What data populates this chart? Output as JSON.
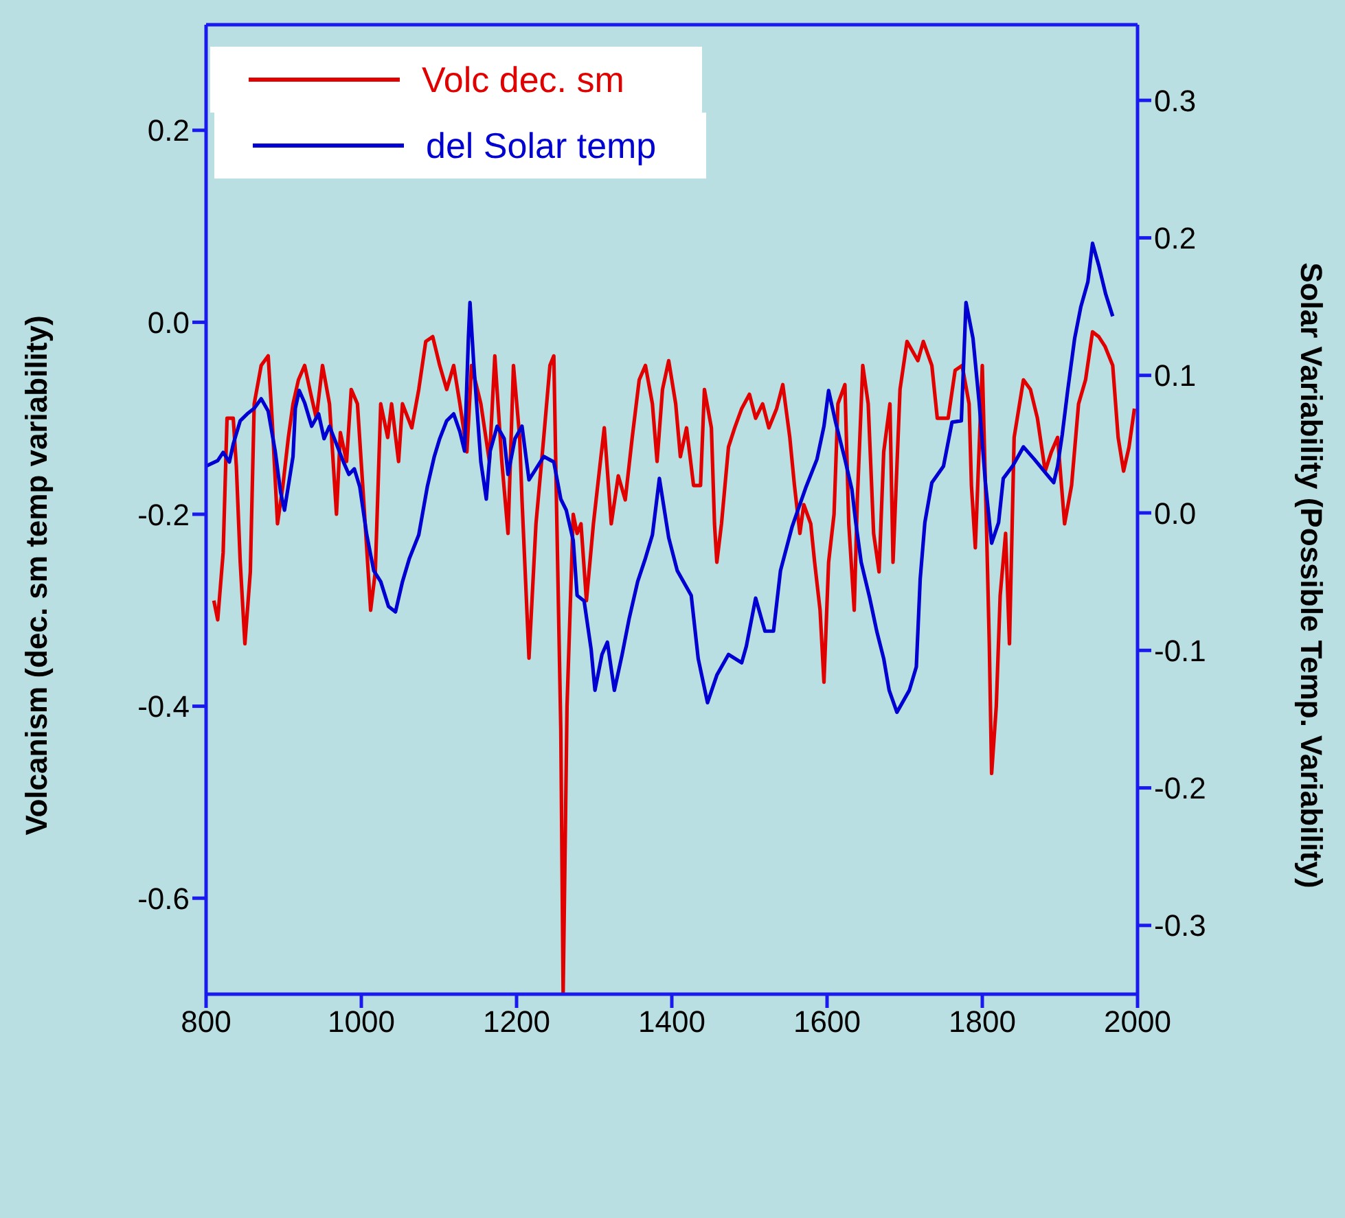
{
  "chart_data": {
    "type": "line",
    "xlabel": null,
    "ylabel": "Volcanism  (dec. sm temp variability)",
    "y2label": "Solar Variability (Possible Temp. Variability)",
    "xlim": [
      800,
      2000
    ],
    "xticks": [
      800,
      1000,
      1200,
      1400,
      1600,
      1800,
      2000
    ],
    "ylim": [
      -0.7,
      0.31
    ],
    "yticks": [
      -0.6,
      -0.4,
      -0.2,
      {
        "value": 0,
        "label": "0.0"
      },
      0.2
    ],
    "y2lim": [
      -0.35,
      0.355
    ],
    "y2ticks": [
      -0.3,
      -0.2,
      -0.1,
      {
        "value": 0,
        "label": "0.0"
      },
      0.1,
      0.2,
      0.3
    ],
    "legend": "top left",
    "marker": "none",
    "line_style": "solid",
    "series": [
      {
        "name": "Volc dec. sm",
        "color": "#e00000",
        "x": [
          810,
          815,
          822,
          827,
          835,
          839,
          844,
          850,
          857,
          862,
          871,
          880,
          885,
          892,
          899,
          906,
          912,
          919,
          927,
          935,
          942,
          950,
          959,
          968,
          973,
          981,
          987,
          995,
          1003,
          1012,
          1018,
          1025,
          1034,
          1039,
          1048,
          1053,
          1065,
          1074,
          1083,
          1092,
          1101,
          1110,
          1119,
          1127,
          1136,
          1142,
          1154,
          1165,
          1172,
          1181,
          1189,
          1196,
          1204,
          1207,
          1216,
          1225,
          1235,
          1243,
          1248,
          1251,
          1257,
          1260,
          1265,
          1273,
          1278,
          1283,
          1290,
          1299,
          1308,
          1313,
          1322,
          1331,
          1340,
          1349,
          1358,
          1366,
          1375,
          1381,
          1388,
          1396,
          1405,
          1411,
          1419,
          1428,
          1437,
          1442,
          1451,
          1455,
          1458,
          1464,
          1473,
          1481,
          1490,
          1500,
          1508,
          1517,
          1525,
          1535,
          1543,
          1552,
          1558,
          1565,
          1570,
          1579,
          1584,
          1591,
          1596,
          1602,
          1609,
          1614,
          1623,
          1628,
          1635,
          1639,
          1646,
          1653,
          1660,
          1667,
          1673,
          1681,
          1685,
          1694,
          1703,
          1717,
          1724,
          1735,
          1742,
          1756,
          1765,
          1774,
          1783,
          1786,
          1791,
          1800,
          1805,
          1809,
          1812,
          1818,
          1823,
          1830,
          1835,
          1841,
          1853,
          1862,
          1871,
          1881,
          1889,
          1897,
          1906,
          1915,
          1924,
          1933,
          1942,
          1950,
          1958,
          1968,
          1975,
          1982,
          1989,
          1996
        ],
        "values": [
          -0.29,
          -0.31,
          -0.24,
          -0.1,
          -0.1,
          -0.15,
          -0.25,
          -0.335,
          -0.26,
          -0.085,
          -0.045,
          -0.035,
          -0.1,
          -0.21,
          -0.17,
          -0.12,
          -0.085,
          -0.06,
          -0.045,
          -0.075,
          -0.1,
          -0.045,
          -0.085,
          -0.2,
          -0.115,
          -0.145,
          -0.07,
          -0.085,
          -0.185,
          -0.3,
          -0.26,
          -0.085,
          -0.12,
          -0.085,
          -0.145,
          -0.085,
          -0.11,
          -0.07,
          -0.02,
          -0.015,
          -0.045,
          -0.07,
          -0.045,
          -0.085,
          -0.135,
          -0.045,
          -0.085,
          -0.145,
          -0.035,
          -0.145,
          -0.22,
          -0.045,
          -0.12,
          -0.185,
          -0.35,
          -0.21,
          -0.12,
          -0.045,
          -0.035,
          -0.17,
          -0.425,
          -0.7,
          -0.4,
          -0.2,
          -0.22,
          -0.21,
          -0.29,
          -0.21,
          -0.145,
          -0.11,
          -0.21,
          -0.16,
          -0.185,
          -0.12,
          -0.06,
          -0.045,
          -0.085,
          -0.145,
          -0.07,
          -0.04,
          -0.085,
          -0.14,
          -0.11,
          -0.17,
          -0.17,
          -0.07,
          -0.11,
          -0.21,
          -0.25,
          -0.21,
          -0.13,
          -0.11,
          -0.09,
          -0.075,
          -0.1,
          -0.085,
          -0.11,
          -0.09,
          -0.065,
          -0.12,
          -0.17,
          -0.22,
          -0.19,
          -0.21,
          -0.25,
          -0.3,
          -0.375,
          -0.25,
          -0.2,
          -0.085,
          -0.065,
          -0.21,
          -0.3,
          -0.185,
          -0.045,
          -0.085,
          -0.22,
          -0.26,
          -0.135,
          -0.085,
          -0.25,
          -0.07,
          -0.02,
          -0.04,
          -0.02,
          -0.045,
          -0.1,
          -0.1,
          -0.05,
          -0.045,
          -0.085,
          -0.17,
          -0.235,
          -0.045,
          -0.2,
          -0.335,
          -0.47,
          -0.4,
          -0.285,
          -0.22,
          -0.335,
          -0.12,
          -0.06,
          -0.07,
          -0.1,
          -0.155,
          -0.135,
          -0.12,
          -0.21,
          -0.17,
          -0.085,
          -0.06,
          -0.01,
          -0.015,
          -0.025,
          -0.045,
          -0.12,
          -0.155,
          -0.13,
          -0.09
        ]
      },
      {
        "name": "del Solar temp",
        "color": "#0000d0",
        "axis": "y2",
        "x": [
          800,
          815,
          822,
          830,
          835,
          844,
          853,
          862,
          871,
          880,
          889,
          896,
          901,
          912,
          915,
          920,
          927,
          936,
          945,
          952,
          959,
          968,
          977,
          984,
          991,
          998,
          1007,
          1016,
          1025,
          1035,
          1044,
          1053,
          1062,
          1074,
          1085,
          1094,
          1101,
          1110,
          1119,
          1127,
          1133,
          1138,
          1140,
          1145,
          1154,
          1161,
          1166,
          1175,
          1184,
          1189,
          1198,
          1207,
          1216,
          1225,
          1235,
          1248,
          1257,
          1264,
          1273,
          1278,
          1287,
          1296,
          1301,
          1310,
          1317,
          1326,
          1336,
          1345,
          1356,
          1366,
          1375,
          1384,
          1396,
          1407,
          1425,
          1434,
          1446,
          1458,
          1473,
          1490,
          1496,
          1508,
          1520,
          1531,
          1540,
          1555,
          1573,
          1587,
          1596,
          1602,
          1611,
          1623,
          1632,
          1637,
          1644,
          1655,
          1664,
          1673,
          1680,
          1690,
          1706,
          1715,
          1720,
          1726,
          1735,
          1750,
          1761,
          1773,
          1779,
          1788,
          1796,
          1804,
          1812,
          1821,
          1827,
          1839,
          1853,
          1867,
          1883,
          1892,
          1897,
          1903,
          1910,
          1919,
          1927,
          1936,
          1942,
          1950,
          1959,
          1968
        ],
        "values": [
          0.034,
          0.038,
          0.044,
          0.037,
          0.05,
          0.067,
          0.072,
          0.076,
          0.083,
          0.074,
          0.045,
          0.015,
          0.002,
          0.041,
          0.076,
          0.089,
          0.08,
          0.063,
          0.072,
          0.054,
          0.063,
          0.05,
          0.037,
          0.028,
          0.032,
          0.019,
          -0.016,
          -0.042,
          -0.05,
          -0.068,
          -0.072,
          -0.05,
          -0.033,
          -0.016,
          0.019,
          0.041,
          0.054,
          0.067,
          0.072,
          0.059,
          0.045,
          0.128,
          0.153,
          0.107,
          0.037,
          0.01,
          0.045,
          0.063,
          0.054,
          0.028,
          0.054,
          0.063,
          0.024,
          0.032,
          0.041,
          0.037,
          0.01,
          0.002,
          -0.02,
          -0.06,
          -0.064,
          -0.099,
          -0.129,
          -0.103,
          -0.094,
          -0.129,
          -0.103,
          -0.077,
          -0.05,
          -0.033,
          -0.016,
          0.025,
          -0.018,
          -0.042,
          -0.06,
          -0.106,
          -0.138,
          -0.118,
          -0.103,
          -0.109,
          -0.097,
          -0.062,
          -0.086,
          -0.086,
          -0.042,
          -0.01,
          0.019,
          0.039,
          0.063,
          0.089,
          0.066,
          0.039,
          0.017,
          -0.007,
          -0.036,
          -0.062,
          -0.086,
          -0.106,
          -0.129,
          -0.145,
          -0.129,
          -0.112,
          -0.048,
          -0.007,
          0.022,
          0.034,
          0.066,
          0.067,
          0.153,
          0.127,
          0.08,
          0.022,
          -0.022,
          -0.007,
          0.025,
          0.034,
          0.048,
          0.039,
          0.028,
          0.022,
          0.034,
          0.057,
          0.089,
          0.127,
          0.15,
          0.168,
          0.196,
          0.18,
          0.159,
          0.143
        ]
      }
    ]
  }
}
